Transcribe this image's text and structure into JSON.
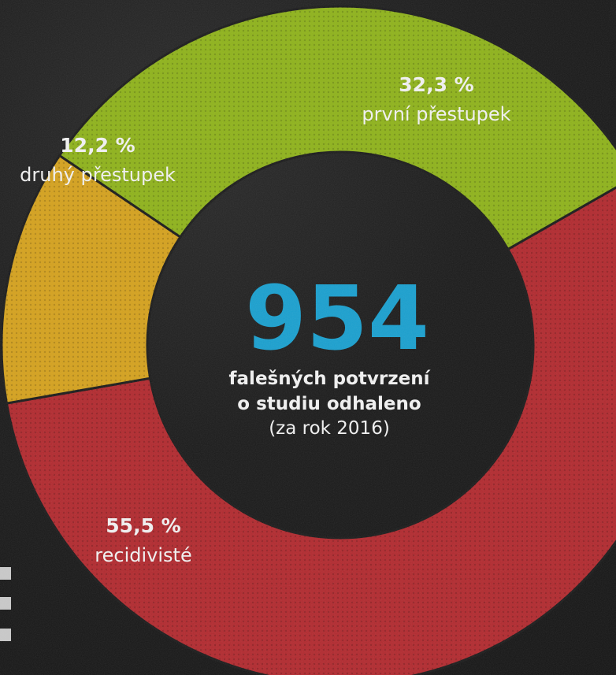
{
  "chart_data": {
    "type": "pie",
    "variant": "donut",
    "slices": [
      {
        "label": "první přestupek",
        "value": 32.3,
        "value_label": "32,3 %",
        "color": "#8fb31b"
      },
      {
        "label": "recidivisté",
        "value": 55.5,
        "value_label": "55,5 %",
        "color": "#b22a2f"
      },
      {
        "label": "druhý přestupek",
        "value": 12.2,
        "value_label": "12,2 %",
        "color": "#d5a21e"
      }
    ],
    "center": {
      "number": "954",
      "line1": "falešných potvrzení",
      "line2": "o studiu odhaleno",
      "line3": "(za rok 2016)"
    }
  }
}
